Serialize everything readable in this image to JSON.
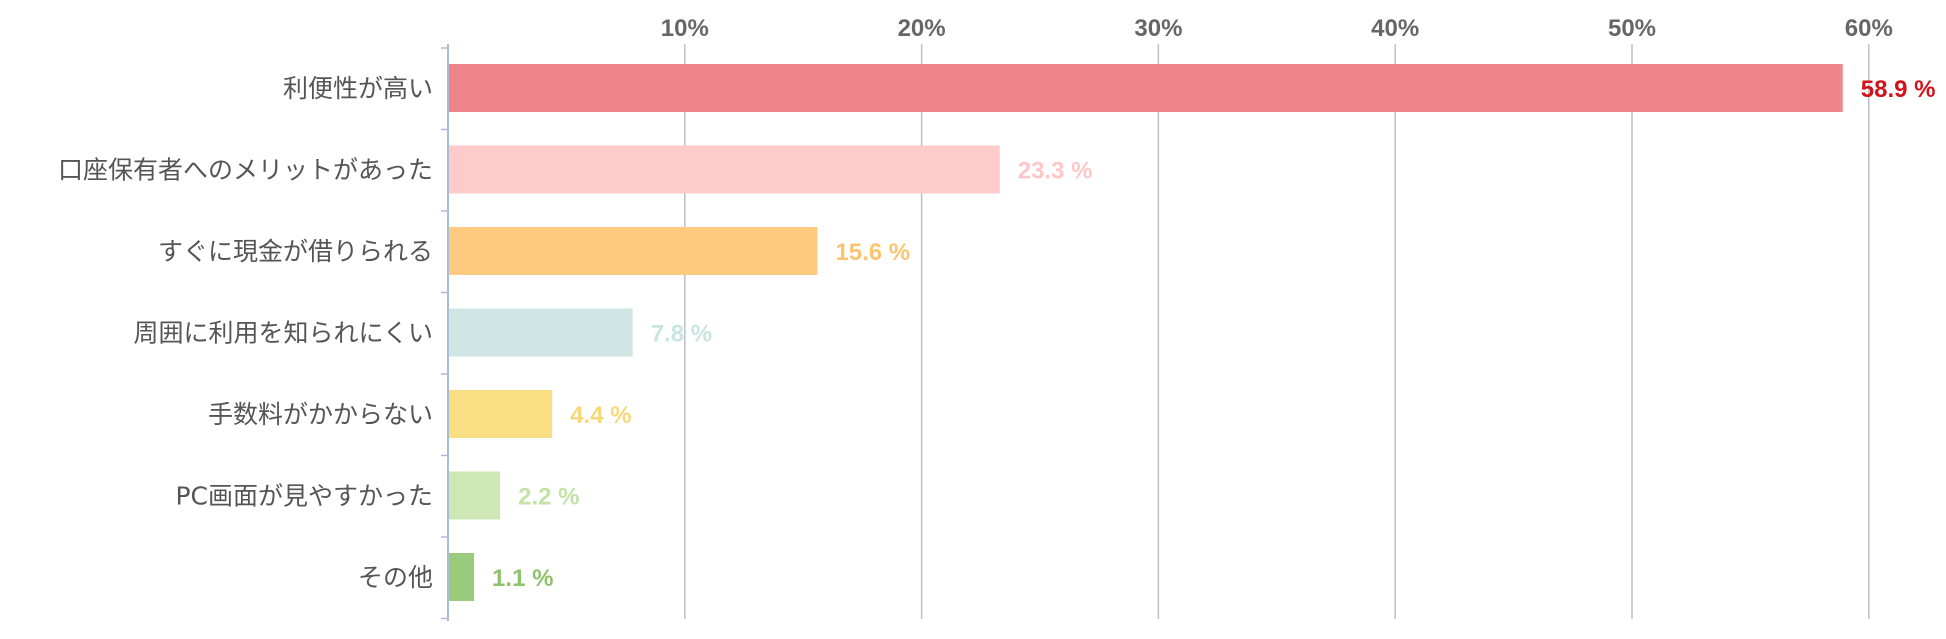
{
  "chart_data": {
    "type": "bar",
    "orientation": "horizontal",
    "title": "",
    "xlabel": "",
    "ylabel": "",
    "xlim": [
      0,
      60
    ],
    "grid": true,
    "tick_values": [
      10,
      20,
      30,
      40,
      50,
      60
    ],
    "tick_labels": [
      "10%",
      "20%",
      "30%",
      "40%",
      "50%",
      "60%"
    ],
    "categories": [
      "利便性が高い",
      "口座保有者へのメリットがあった",
      "すぐに現金が借りられる",
      "周囲に利用を知られにくい",
      "手数料がかからない",
      "PC画面が見やすかった",
      "その他"
    ],
    "values": [
      58.9,
      23.3,
      15.6,
      7.8,
      4.4,
      2.2,
      1.1
    ],
    "value_labels": [
      "58.9 %",
      "23.3 %",
      "15.6 %",
      "7.8 %",
      "4.4 %",
      "2.2 %",
      "1.1 %"
    ],
    "bar_colors": [
      "#ee858b",
      "#fecbcb",
      "#fdca80",
      "#cfe6e5",
      "#f9de84",
      "#cde8b5",
      "#9acb7d"
    ],
    "label_colors": [
      "#d0121b",
      "#fdc7c7",
      "#fbc56f",
      "#c9e4e4",
      "#f7d777",
      "#c2e2a6",
      "#8ec26d"
    ]
  }
}
